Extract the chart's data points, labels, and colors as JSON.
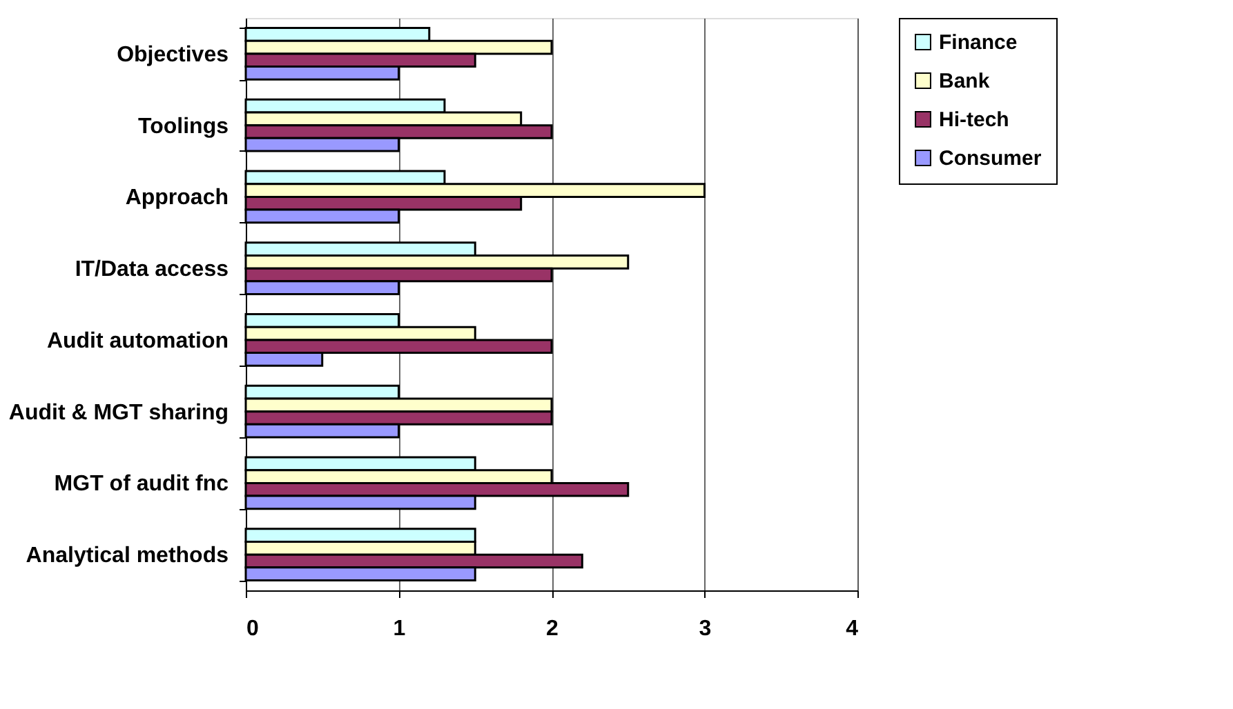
{
  "chart_data": {
    "type": "bar",
    "orientation": "horizontal",
    "categories": [
      "Objectives",
      "Toolings",
      "Approach",
      "IT/Data access",
      "Audit automation",
      "Audit & MGT sharing",
      "MGT of audit fnc",
      "Analytical methods"
    ],
    "series": [
      {
        "name": "Finance",
        "color": "#ccffff",
        "values": [
          1.2,
          1.3,
          1.3,
          1.5,
          1,
          1,
          1.5,
          1.5
        ]
      },
      {
        "name": "Bank",
        "color": "#ffffcc",
        "values": [
          2,
          1.8,
          3,
          2.5,
          1.5,
          2,
          2,
          1.5
        ]
      },
      {
        "name": "Hi-tech",
        "color": "#993366",
        "values": [
          1.5,
          2,
          1.8,
          2,
          2,
          2,
          2.5,
          2.2
        ]
      },
      {
        "name": "Consumer",
        "color": "#9999ff",
        "values": [
          1,
          1,
          1,
          1,
          0.5,
          1,
          1.5,
          1.5
        ]
      }
    ],
    "xlim": [
      0,
      4
    ],
    "xticks": [
      0,
      1,
      2,
      3,
      4
    ],
    "grid": "x",
    "legend": "right"
  }
}
